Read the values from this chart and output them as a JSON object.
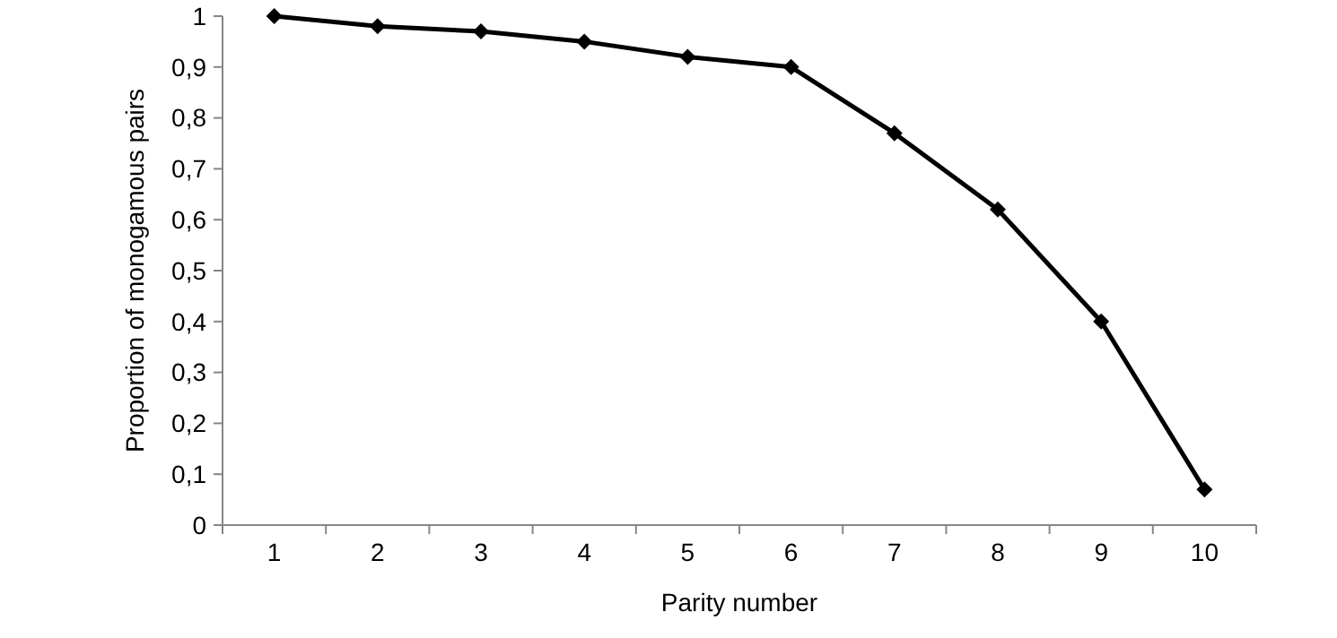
{
  "chart_data": {
    "type": "line",
    "xlabel": "Parity number",
    "ylabel": "Proportion of monogamous pairs",
    "categories": [
      "1",
      "2",
      "3",
      "4",
      "5",
      "6",
      "7",
      "8",
      "9",
      "10"
    ],
    "series": [
      {
        "color": "#000000",
        "values": [
          1,
          0.98,
          0.97,
          0.95,
          0.92,
          0.9,
          0.77,
          0.62,
          0.4,
          0.07
        ]
      }
    ],
    "ylim": [
      0,
      1
    ],
    "yticks": [
      0,
      {
        "value": 0.1,
        "label": "0,1"
      },
      {
        "value": 0.2,
        "label": "0,2"
      },
      {
        "value": 0.3,
        "label": "0,3"
      },
      {
        "value": 0.4,
        "label": "0,4"
      },
      {
        "value": 0.5,
        "label": "0,5"
      },
      {
        "value": 0.6,
        "label": "0,6"
      },
      {
        "value": 0.7,
        "label": "0,7"
      },
      {
        "value": 0.8,
        "label": "0,8"
      },
      {
        "value": 0.9,
        "label": "0,9"
      },
      1
    ],
    "grid": false,
    "marker": "diamond",
    "line_style": "solid"
  }
}
